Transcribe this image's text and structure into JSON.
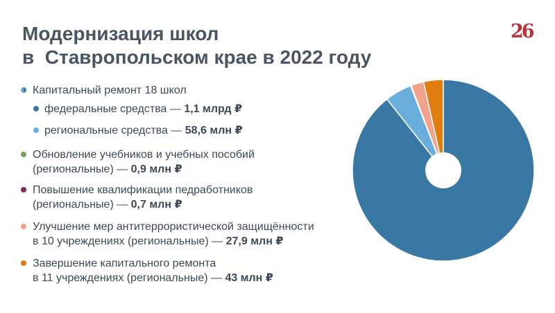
{
  "title": {
    "line1": "Модернизация школ",
    "line2": "в  Ставропольском крае в 2022 году"
  },
  "logo": {
    "text": "26"
  },
  "legend": [
    {
      "text": "Капитальный ремонт 18 школ",
      "value": "",
      "color": "#3a78a4",
      "indent": false,
      "bullet": "half"
    },
    {
      "text": "федеральные средства — ",
      "value": "1,1 млрд ₽",
      "color": "#3a78a4",
      "indent": true
    },
    {
      "text": "региональные средства — ",
      "value": "58,6 млн ₽",
      "color": "#6aafdc",
      "indent": true
    },
    {
      "text": "Обновление учебников и учебных пособий",
      "text2": "(региональные) — ",
      "value": "0,9 млн ₽",
      "color": "#6fa84f",
      "indent": false
    },
    {
      "text": "Повышение квалификации педработников",
      "text2": "(региональные) — ",
      "value": "0,7 млн ₽",
      "color": "#7e2a5b",
      "indent": false
    },
    {
      "text": "Улучшение мер антитеррористической защищённости",
      "text2": "в 10 учреждениях (региональные) — ",
      "value": "27,9 млн ₽",
      "color": "#f3a38c",
      "indent": false
    },
    {
      "text": "Завершение капитального ремонта",
      "text2": "в 11 учреждениях (региональные) — ",
      "value": "43 млн ₽",
      "color": "#e07d10",
      "indent": false
    }
  ],
  "chart_data": {
    "type": "pie",
    "donut": true,
    "unit": "млн ₽",
    "slices": [
      {
        "label": "федеральные средства",
        "value": 1100,
        "color": "#3a78a4"
      },
      {
        "label": "региональные средства",
        "value": 58.6,
        "color": "#6aafdc"
      },
      {
        "label": "Обновление учебников и учебных пособий",
        "value": 0.9,
        "color": "#6fa84f"
      },
      {
        "label": "Повышение квалификации педработников",
        "value": 0.7,
        "color": "#7e2a5b"
      },
      {
        "label": "Улучшение мер антитеррористической защищённости",
        "value": 27.9,
        "color": "#f3a38c"
      },
      {
        "label": "Завершение капитального ремонта",
        "value": 43,
        "color": "#e07d10"
      }
    ]
  }
}
